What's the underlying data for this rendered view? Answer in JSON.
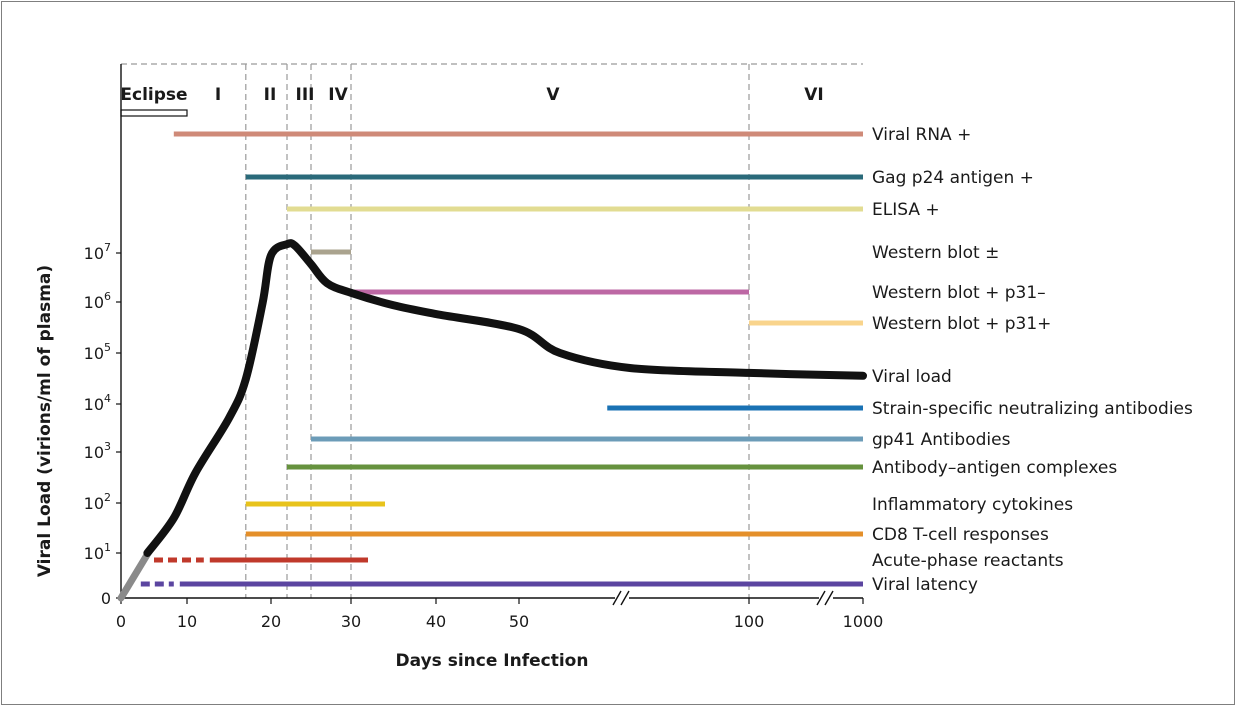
{
  "chart_data": {
    "type": "line",
    "title": "",
    "xlabel": "Days since Infection",
    "ylabel": "Viral Load (virions/ml of plasma)",
    "x_axis": {
      "ticks": [
        "0",
        "10",
        "20",
        "30",
        "40",
        "50",
        "100",
        "1000"
      ],
      "breaks_after": [
        "50",
        "100"
      ]
    },
    "y_axis": {
      "scale": "log",
      "ticks": [
        {
          "base": "0",
          "exp": ""
        },
        {
          "base": "10",
          "exp": "1"
        },
        {
          "base": "10",
          "exp": "2"
        },
        {
          "base": "10",
          "exp": "3"
        },
        {
          "base": "10",
          "exp": "4"
        },
        {
          "base": "10",
          "exp": "5"
        },
        {
          "base": "10",
          "exp": "6"
        },
        {
          "base": "10",
          "exp": "7"
        }
      ]
    },
    "grid": false,
    "stages": [
      {
        "label": "Eclipse",
        "start": 0,
        "end": 8
      },
      {
        "label": "I",
        "start": 8,
        "end": 17
      },
      {
        "label": "II",
        "start": 17,
        "end": 22
      },
      {
        "label": "III",
        "start": 22,
        "end": 25
      },
      {
        "label": "IV",
        "start": 25,
        "end": 30
      },
      {
        "label": "V",
        "start": 30,
        "end": 100
      },
      {
        "label": "VI",
        "start": 100,
        "end": 1000
      }
    ],
    "viral_load_series": {
      "name": "Viral load",
      "color": "#111111",
      "points": [
        {
          "x": 0,
          "y": 0
        },
        {
          "x": 4,
          "y": 10
        },
        {
          "x": 8,
          "y": 50
        },
        {
          "x": 11,
          "y": 400
        },
        {
          "x": 15,
          "y": 5000
        },
        {
          "x": 17,
          "y": 30000
        },
        {
          "x": 19,
          "y": 1000000
        },
        {
          "x": 20,
          "y": 9000000
        },
        {
          "x": 22,
          "y": 15000000
        },
        {
          "x": 23,
          "y": 14000000
        },
        {
          "x": 25,
          "y": 6000000
        },
        {
          "x": 27,
          "y": 2500000
        },
        {
          "x": 30,
          "y": 1600000
        },
        {
          "x": 35,
          "y": 900000
        },
        {
          "x": 40,
          "y": 600000
        },
        {
          "x": 50,
          "y": 300000
        },
        {
          "x": 60,
          "y": 100000
        },
        {
          "x": 75,
          "y": 50000
        },
        {
          "x": 100,
          "y": 40000
        },
        {
          "x": 1000,
          "y": 35000
        }
      ]
    },
    "markers": [
      {
        "name": "Viral RNA +",
        "start": 8,
        "end": 1000,
        "color": "#cf8a78"
      },
      {
        "name": "Gag p24 antigen +",
        "start": 17,
        "end": 1000,
        "color": "#2a6a7a"
      },
      {
        "name": "ELISA +",
        "start": 22,
        "end": 1000,
        "color": "#e2dc92"
      },
      {
        "name": "Western blot ±",
        "start": 25,
        "end": 30,
        "color": "#aaa38e"
      },
      {
        "name": "Western blot + p31–",
        "start": 30,
        "end": 100,
        "color": "#bd68a4"
      },
      {
        "name": "Western blot + p31+",
        "start": 100,
        "end": 1000,
        "color": "#f9d48c"
      },
      {
        "name": "Strain-specific neutralizing antibodies",
        "start": 70,
        "end": 1000,
        "color": "#1a72b4"
      },
      {
        "name": "gp41 Antibodies",
        "start": 25,
        "end": 1000,
        "color": "#6c9cb8"
      },
      {
        "name": "Antibody–antigen complexes",
        "start": 22,
        "end": 1000,
        "color": "#66923e"
      },
      {
        "name": "Inflammatory cytokines",
        "start": 17,
        "end": 34,
        "color": "#e8c31c"
      },
      {
        "name": "CD8 T-cell responses",
        "start": 17,
        "end": 1000,
        "color": "#e48f2a"
      },
      {
        "name": "Acute-phase reactants",
        "start": 5,
        "end": 32,
        "color": "#c0392b",
        "dashed_until": 12
      },
      {
        "name": "Viral latency",
        "start": 3,
        "end": 1000,
        "color": "#5b45a0",
        "dashed_until": 8
      }
    ],
    "colors": {
      "early_segment": "#8a8a8a",
      "divider": "#9a9a9a"
    }
  }
}
